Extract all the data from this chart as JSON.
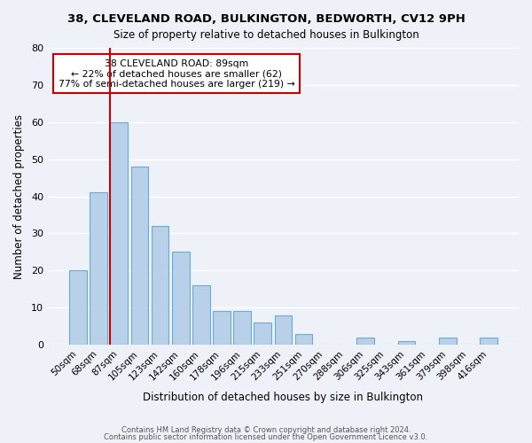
{
  "title": "38, CLEVELAND ROAD, BULKINGTON, BEDWORTH, CV12 9PH",
  "subtitle": "Size of property relative to detached houses in Bulkington",
  "xlabel": "Distribution of detached houses by size in Bulkington",
  "ylabel": "Number of detached properties",
  "footer_line1": "Contains HM Land Registry data © Crown copyright and database right 2024.",
  "footer_line2": "Contains public sector information licensed under the Open Government Licence v3.0.",
  "bar_labels": [
    "50sqm",
    "68sqm",
    "87sqm",
    "105sqm",
    "123sqm",
    "142sqm",
    "160sqm",
    "178sqm",
    "196sqm",
    "215sqm",
    "233sqm",
    "251sqm",
    "270sqm",
    "288sqm",
    "306sqm",
    "325sqm",
    "343sqm",
    "361sqm",
    "379sqm",
    "398sqm",
    "416sqm"
  ],
  "bar_values": [
    20,
    41,
    60,
    48,
    32,
    25,
    16,
    9,
    9,
    6,
    8,
    3,
    0,
    0,
    2,
    0,
    1,
    0,
    2,
    0,
    2
  ],
  "bar_color": "#b8d0e8",
  "bar_edge_color": "#6aaad4",
  "redline_index": 2,
  "annotation_title": "38 CLEVELAND ROAD: 89sqm",
  "annotation_line2": "← 22% of detached houses are smaller (62)",
  "annotation_line3": "77% of semi-detached houses are larger (219) →",
  "annotation_box_color": "#ffffff",
  "annotation_box_edge": "#cc0000",
  "ylim": [
    0,
    80
  ],
  "yticks": [
    0,
    10,
    20,
    30,
    40,
    50,
    60,
    70,
    80
  ],
  "bg_color": "#eef2f8",
  "grid_color": "#ffffff"
}
